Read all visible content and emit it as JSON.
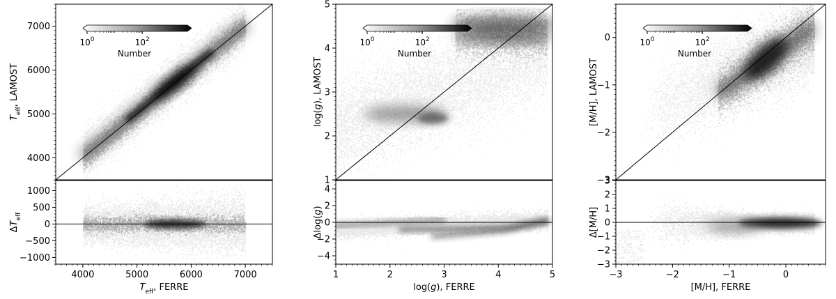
{
  "chart_data": [
    {
      "type": "heatmap",
      "xlabel": "T_eff, FERRE",
      "ylabel_top": "T_eff, LAMOST",
      "ylabel_bottom": "ΔT_eff",
      "xlim": [
        3500,
        7500
      ],
      "ylim_top": [
        3500,
        7500
      ],
      "ylim_bottom": [
        -1200,
        1300
      ],
      "xticks": [
        4000,
        5000,
        6000,
        7000
      ],
      "yticks_top": [
        4000,
        5000,
        6000,
        7000
      ],
      "yticks_bottom": [
        -1000,
        -500,
        0,
        500,
        1000
      ],
      "colorbar": {
        "label": "Number",
        "ticks": [
          "10^0",
          "10^2"
        ]
      },
      "one_to_one_line": true,
      "zero_line": true
    },
    {
      "type": "heatmap",
      "xlabel": "log(g), FERRE",
      "ylabel_top": "log(g), LAMOST",
      "ylabel_bottom": "Δlog(g)",
      "xlim": [
        1,
        5
      ],
      "ylim_top": [
        1,
        5
      ],
      "ylim_bottom": [
        -5,
        5
      ],
      "xticks": [
        1,
        2,
        3,
        4,
        5
      ],
      "yticks_top": [
        1,
        2,
        3,
        4,
        5
      ],
      "yticks_bottom": [
        -4,
        -2,
        0,
        2,
        4
      ],
      "colorbar": {
        "label": "Number",
        "ticks": [
          "10^0",
          "10^2"
        ]
      },
      "one_to_one_line": true,
      "zero_line": true
    },
    {
      "type": "heatmap",
      "xlabel": "[M/H], FERRE",
      "ylabel_top": "[M/H], LAMOST",
      "ylabel_bottom": "Δ[M/H]",
      "xlim": [
        -3,
        0.7
      ],
      "ylim_top": [
        -3,
        0.7
      ],
      "ylim_bottom": [
        -3,
        3
      ],
      "xticks": [
        -3,
        -2,
        -1,
        0
      ],
      "yticks_top": [
        -3,
        -2,
        -1,
        0
      ],
      "yticks_bottom": [
        -3,
        -2,
        -1,
        0,
        1,
        2,
        3
      ],
      "colorbar": {
        "label": "Number",
        "ticks": [
          "10^0",
          "10^2"
        ]
      },
      "one_to_one_line": true,
      "zero_line": true
    }
  ]
}
